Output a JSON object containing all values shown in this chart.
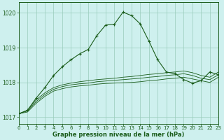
{
  "title": "Graphe pression niveau de la mer (hPa)",
  "background_color": "#cef0ee",
  "grid_color": "#99ccbb",
  "line_color": "#1a5c1a",
  "xlim": [
    0,
    23
  ],
  "ylim": [
    1016.8,
    1020.3
  ],
  "yticks": [
    1017,
    1018,
    1019,
    1020
  ],
  "xticks": [
    0,
    1,
    2,
    3,
    4,
    5,
    6,
    7,
    8,
    9,
    10,
    11,
    12,
    13,
    14,
    15,
    16,
    17,
    18,
    19,
    20,
    21,
    22,
    23
  ],
  "flat1": [
    1017.1,
    1017.15,
    1017.4,
    1017.6,
    1017.75,
    1017.82,
    1017.87,
    1017.9,
    1017.92,
    1017.95,
    1017.97,
    1017.98,
    1017.99,
    1018.0,
    1018.02,
    1018.05,
    1018.07,
    1018.1,
    1018.12,
    1018.15,
    1018.1,
    1018.05,
    1018.0,
    1018.15
  ],
  "flat2": [
    1017.1,
    1017.18,
    1017.45,
    1017.65,
    1017.8,
    1017.88,
    1017.93,
    1017.96,
    1017.98,
    1018.02,
    1018.04,
    1018.06,
    1018.08,
    1018.1,
    1018.12,
    1018.15,
    1018.17,
    1018.2,
    1018.22,
    1018.25,
    1018.2,
    1018.12,
    1018.08,
    1018.22
  ],
  "flat3": [
    1017.1,
    1017.2,
    1017.5,
    1017.7,
    1017.85,
    1017.93,
    1017.98,
    1018.02,
    1018.05,
    1018.08,
    1018.1,
    1018.12,
    1018.15,
    1018.17,
    1018.2,
    1018.23,
    1018.25,
    1018.28,
    1018.3,
    1018.33,
    1018.28,
    1018.2,
    1018.15,
    1018.3
  ],
  "main": [
    1017.1,
    1017.2,
    1017.55,
    1017.85,
    1018.2,
    1018.45,
    1018.65,
    1018.82,
    1018.95,
    1019.35,
    1019.65,
    1019.67,
    1020.02,
    1019.92,
    1019.68,
    1019.18,
    1018.65,
    1018.3,
    1018.25,
    1018.08,
    1017.98,
    1018.05,
    1018.3,
    1018.22
  ]
}
